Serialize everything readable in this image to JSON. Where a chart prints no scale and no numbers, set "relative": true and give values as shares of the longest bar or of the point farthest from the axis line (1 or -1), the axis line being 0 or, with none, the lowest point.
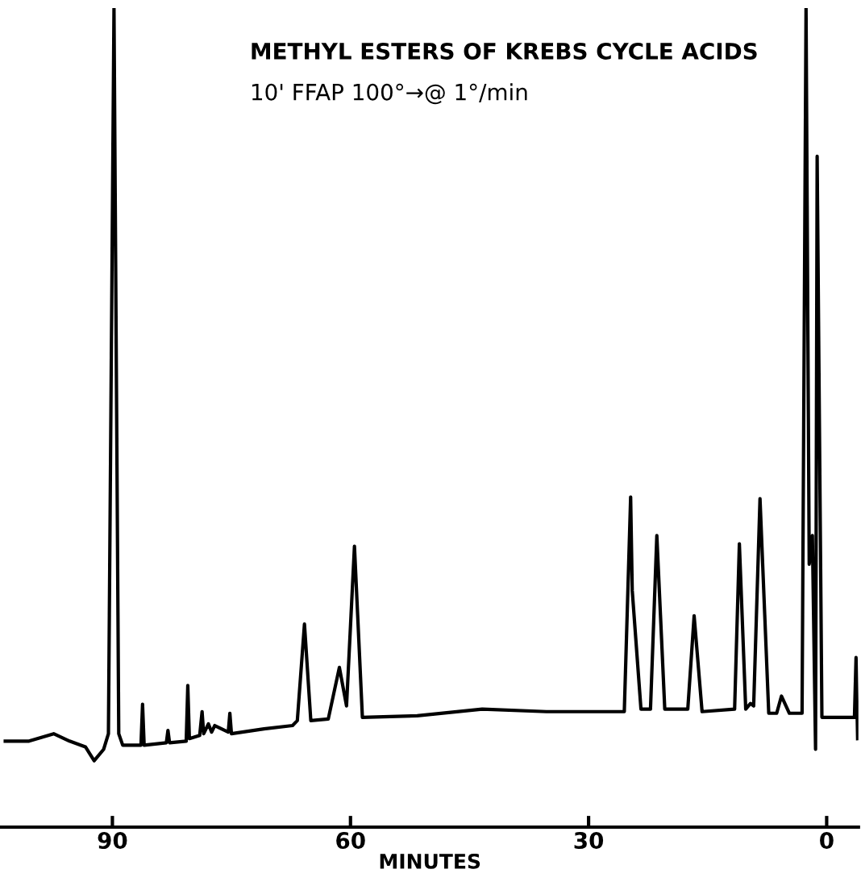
{
  "chart_data": {
    "type": "line",
    "title": "METHYL ESTERS OF KREBS CYCLE ACIDS",
    "subtitle": "10' FFAP 100°→@ 1°/min",
    "xlabel": "MINUTES",
    "relative": true,
    "xlim": [
      104,
      -4
    ],
    "xticks": [
      90,
      60,
      30,
      0
    ],
    "grid": false,
    "series": [
      {
        "color": "#000000",
        "x": [
          103.5,
          100.5,
          97.4,
          95.4,
          93.4,
          92.3,
          91.1,
          90.5,
          89.8,
          89.2,
          88.7,
          86.4,
          86.2,
          86.0,
          83.2,
          83.0,
          82.8,
          80.7,
          80.5,
          80.3,
          79.0,
          78.7,
          78.5,
          77.9,
          77.5,
          77.1,
          75.4,
          75.2,
          75.0,
          70.9,
          67.3,
          66.7,
          65.8,
          65.0,
          62.8,
          61.4,
          60.5,
          59.5,
          58.5,
          51.6,
          43.4,
          35.3,
          29.1,
          25.5,
          24.7,
          24.5,
          23.4,
          22.2,
          21.4,
          20.4,
          17.5,
          16.7,
          15.7,
          11.6,
          11.0,
          10.2,
          9.6,
          9.2,
          8.4,
          7.3,
          6.3,
          5.7,
          4.7,
          3.1,
          2.6,
          2.2,
          1.8,
          1.4,
          1.2,
          0.6,
          -3.5,
          -3.7,
          -3.9
        ],
        "values": [
          0.105,
          0.105,
          0.114,
          0.105,
          0.098,
          0.081,
          0.095,
          0.114,
          1.0,
          0.114,
          0.1,
          0.1,
          0.15,
          0.1,
          0.103,
          0.118,
          0.103,
          0.105,
          0.173,
          0.108,
          0.112,
          0.141,
          0.114,
          0.126,
          0.116,
          0.124,
          0.116,
          0.139,
          0.114,
          0.12,
          0.124,
          0.13,
          0.248,
          0.13,
          0.132,
          0.195,
          0.148,
          0.343,
          0.134,
          0.136,
          0.144,
          0.141,
          0.141,
          0.141,
          0.403,
          0.289,
          0.144,
          0.144,
          0.356,
          0.144,
          0.144,
          0.258,
          0.141,
          0.144,
          0.346,
          0.144,
          0.151,
          0.148,
          0.401,
          0.139,
          0.139,
          0.16,
          0.139,
          0.139,
          1.0,
          0.321,
          0.356,
          0.095,
          0.819,
          0.134,
          0.134,
          0.207,
          0.108
        ]
      }
    ]
  }
}
